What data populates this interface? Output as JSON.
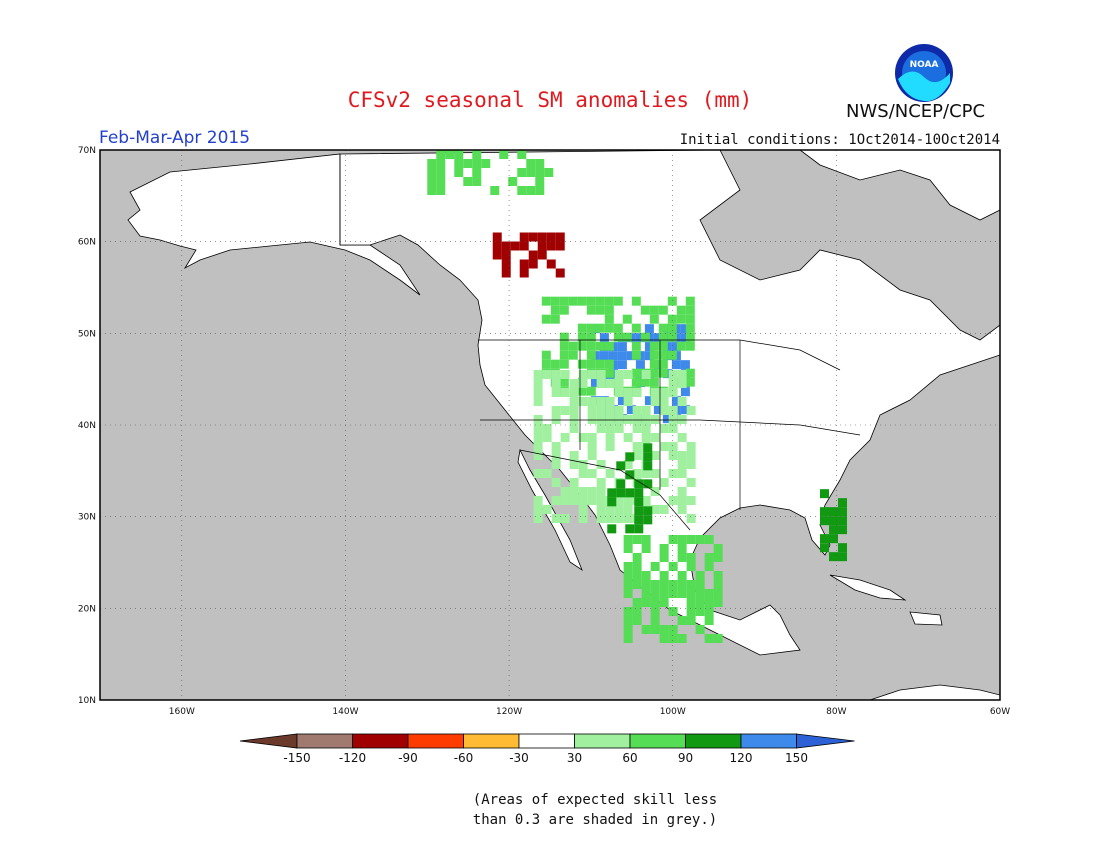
{
  "header": {
    "title": "CFSv2 seasonal SM anomalies (mm)",
    "org": "NWS/NCEP/CPC",
    "logo_text": "NOAA",
    "period": "Feb-Mar-Apr 2015",
    "initial_conditions": "Initial conditions: 1Oct2014-10Oct2014"
  },
  "map": {
    "region": "North America",
    "lat_range": [
      10,
      70
    ],
    "lon_range": [
      -170,
      -60
    ],
    "lat_ticks": [
      {
        "value": 10,
        "label": "10N"
      },
      {
        "value": 20,
        "label": "20N"
      },
      {
        "value": 30,
        "label": "30N"
      },
      {
        "value": 40,
        "label": "40N"
      },
      {
        "value": 50,
        "label": "50N"
      },
      {
        "value": 60,
        "label": "60N"
      },
      {
        "value": 70,
        "label": "70N"
      }
    ],
    "lon_ticks": [
      {
        "value": -160,
        "label": "160W"
      },
      {
        "value": -140,
        "label": "140W"
      },
      {
        "value": -120,
        "label": "120W"
      },
      {
        "value": -100,
        "label": "100W"
      },
      {
        "value": -80,
        "label": "80W"
      },
      {
        "value": -60,
        "label": "60W"
      }
    ],
    "colors": {
      "ocean_mask": "#c0c0c0",
      "land_neutral": "#ffffff",
      "coastline": "#000000",
      "grid": "#555555"
    },
    "anomaly_regions": [
      {
        "name": "northern-plains-wet",
        "level": 150,
        "lon": [
          -110,
          -98
        ],
        "lat": [
          41,
          51
        ]
      },
      {
        "name": "canadian-prairies-wet",
        "level": 90,
        "lon": [
          -116,
          -98
        ],
        "lat": [
          44,
          54
        ]
      },
      {
        "name": "rockies-wet",
        "level": 60,
        "lon": [
          -117,
          -98
        ],
        "lat": [
          30,
          46
        ]
      },
      {
        "name": "texas-mexico-wet",
        "level": 120,
        "lon": [
          -108,
          -103
        ],
        "lat": [
          29,
          38
        ]
      },
      {
        "name": "mexico-west-wet",
        "level": 90,
        "lon": [
          -106,
          -94
        ],
        "lat": [
          17,
          28
        ]
      },
      {
        "name": "alaska-north-wet",
        "level": 90,
        "lon": [
          -130,
          -115
        ],
        "lat": [
          66,
          70
        ]
      },
      {
        "name": "yukon-dry",
        "level": -90,
        "lon": [
          -122,
          -114
        ],
        "lat": [
          57,
          61
        ]
      },
      {
        "name": "florida-wet",
        "level": 120,
        "lon": [
          -82,
          -79
        ],
        "lat": [
          26,
          33
        ]
      }
    ]
  },
  "legend": {
    "bins": [
      {
        "label": "-150",
        "color": "#6b3a2a"
      },
      {
        "label": "-120",
        "color": "#a07a6e"
      },
      {
        "label": "-90",
        "color": "#a00000"
      },
      {
        "label": "-60",
        "color": "#ff3c00"
      },
      {
        "label": "-30",
        "color": "#ffbb33"
      },
      {
        "label": "30",
        "color": "#ffffff"
      },
      {
        "label": "60",
        "color": "#a0f0a0"
      },
      {
        "label": "90",
        "color": "#55dd55"
      },
      {
        "label": "120",
        "color": "#119911"
      },
      {
        "label": "150",
        "color": "#3d8aeb"
      },
      {
        "label": "",
        "color": "#2c62d6"
      }
    ],
    "tick_labels": [
      "-150",
      "-120",
      "-90",
      "-60",
      "-30",
      "30",
      "60",
      "90",
      "120",
      "150"
    ]
  },
  "footnote": {
    "line1": "(Areas of expected skill less",
    "line2": "than 0.3 are shaded in grey.)"
  }
}
